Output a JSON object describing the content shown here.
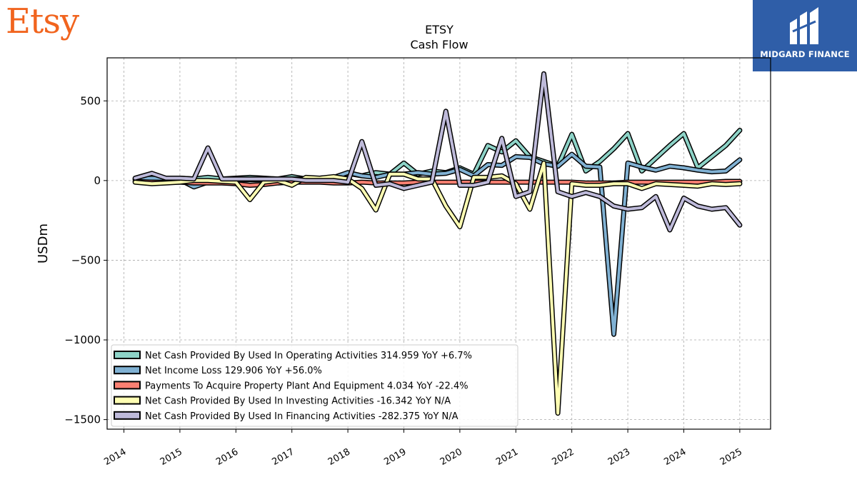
{
  "brand": {
    "left_logo": "Etsy",
    "right_logo": "MIDGARD FINANCE"
  },
  "chart_data": {
    "type": "line",
    "title": "ETSY",
    "subtitle": "Cash Flow",
    "xlabel": "",
    "ylabel": "USDm",
    "xlim": [
      2013.7,
      2025.55
    ],
    "ylim": [
      -1560,
      770
    ],
    "yticks": [
      500,
      0,
      -500,
      -1000,
      -1500
    ],
    "ytick_labels": [
      "500",
      "0",
      "−500",
      "−1000",
      "−1500"
    ],
    "xticks": [
      2014,
      2015,
      2016,
      2017,
      2018,
      2019,
      2020,
      2021,
      2022,
      2023,
      2024,
      2025
    ],
    "grid": true,
    "legend_position": "bottom-left",
    "x": [
      2014.2,
      2014.5,
      2014.75,
      2015.0,
      2015.25,
      2015.5,
      2015.75,
      2016.0,
      2016.25,
      2016.5,
      2016.75,
      2017.0,
      2017.25,
      2017.5,
      2017.75,
      2018.0,
      2018.25,
      2018.5,
      2018.75,
      2019.0,
      2019.25,
      2019.5,
      2019.75,
      2020.0,
      2020.25,
      2020.5,
      2020.75,
      2021.0,
      2021.25,
      2021.5,
      2021.75,
      2022.0,
      2022.25,
      2022.5,
      2022.75,
      2023.0,
      2023.25,
      2023.5,
      2023.75,
      2024.0,
      2024.25,
      2024.5,
      2024.75,
      2025.0
    ],
    "series": [
      {
        "name": "Net Cash Provided By Used In Operating Activities",
        "color": "#8dd3c7",
        "legend_label": "Net Cash Provided By Used In Operating Activities  314.959 YoY +6.7%",
        "values": [
          5,
          20,
          15,
          15,
          10,
          20,
          10,
          15,
          20,
          15,
          10,
          25,
          10,
          15,
          20,
          45,
          30,
          50,
          40,
          110,
          40,
          60,
          50,
          80,
          40,
          220,
          180,
          250,
          150,
          120,
          90,
          290,
          60,
          120,
          200,
          295,
          60,
          140,
          220,
          295,
          80,
          150,
          220,
          315
        ]
      },
      {
        "name": "Net Income Loss",
        "color": "#80b1d3",
        "legend_label": "Net Income Loss  129.906 YoY +56.0%",
        "values": [
          10,
          15,
          10,
          5,
          -40,
          -10,
          -10,
          5,
          5,
          5,
          5,
          10,
          10,
          15,
          20,
          50,
          30,
          20,
          40,
          40,
          50,
          40,
          45,
          70,
          30,
          100,
          95,
          150,
          145,
          105,
          90,
          165,
          90,
          85,
          -965,
          110,
          85,
          65,
          90,
          80,
          65,
          55,
          60,
          130
        ]
      },
      {
        "name": "Payments To Acquire Property Plant And Equipment",
        "color": "#fb8072",
        "legend_label": "Payments To Acquire Property Plant And Equipment  4.034 YoY -22.4%",
        "values": [
          -5,
          -10,
          -10,
          -10,
          -15,
          -15,
          -15,
          -20,
          -30,
          -25,
          -15,
          -10,
          -10,
          -10,
          -15,
          -15,
          -10,
          -15,
          -15,
          -15,
          -10,
          -10,
          -10,
          -10,
          -10,
          -10,
          -10,
          -10,
          -10,
          -10,
          -10,
          -10,
          -15,
          -15,
          -15,
          -10,
          -10,
          -10,
          -10,
          -10,
          -10,
          -10,
          -5,
          -5
        ]
      },
      {
        "name": "Net Cash Provided By Used In Investing Activities",
        "color": "#ffffb3",
        "legend_label": "Net Cash Provided By Used In Investing Activities  -16.342 YoY N/A",
        "values": [
          -10,
          -20,
          -15,
          -10,
          0,
          0,
          -5,
          -10,
          -120,
          -10,
          0,
          -30,
          20,
          15,
          25,
          10,
          -50,
          -185,
          40,
          40,
          10,
          10,
          -160,
          -290,
          20,
          20,
          30,
          -20,
          -180,
          110,
          -1460,
          -20,
          -30,
          -30,
          -20,
          -20,
          -50,
          -20,
          -25,
          -30,
          -35,
          -20,
          -25,
          -20
        ]
      },
      {
        "name": "Net Cash Provided By Used In Financing Activities",
        "color": "#bebada",
        "legend_label": "Net Cash Provided By Used In Financing Activities  -282.375 YoY N/A",
        "values": [
          15,
          45,
          15,
          15,
          10,
          205,
          10,
          10,
          10,
          10,
          10,
          10,
          0,
          0,
          0,
          -10,
          245,
          -30,
          -20,
          -50,
          -30,
          -10,
          435,
          -30,
          -30,
          -10,
          265,
          -100,
          -70,
          670,
          -70,
          -100,
          -75,
          -100,
          -160,
          -180,
          -170,
          -100,
          -310,
          -110,
          -160,
          -180,
          -170,
          -280
        ]
      }
    ]
  }
}
